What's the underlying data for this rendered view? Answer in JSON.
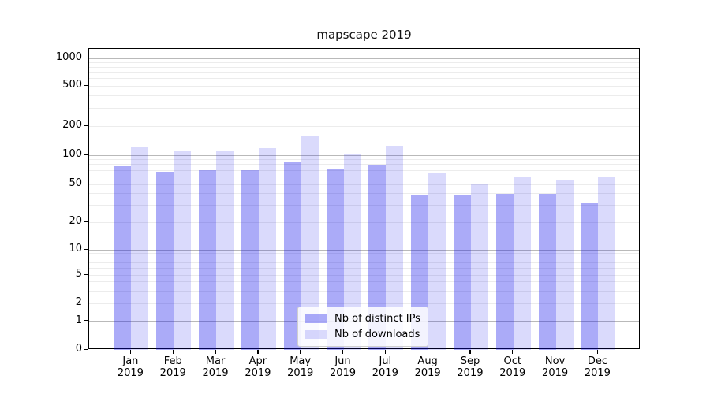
{
  "chart_data": {
    "type": "bar",
    "title": "mapscape 2019",
    "categories": [
      "Jan 2019",
      "Feb 2019",
      "Mar 2019",
      "Apr 2019",
      "May 2019",
      "Jun 2019",
      "Jul 2019",
      "Aug 2019",
      "Sep 2019",
      "Oct 2019",
      "Nov 2019",
      "Dec 2019"
    ],
    "series": [
      {
        "name": "Nb of distinct IPs",
        "color": "rgba(8,8,235,0.34)",
        "values": [
          77,
          67,
          70,
          70,
          86,
          71,
          79,
          38,
          38,
          40,
          40,
          32
        ]
      },
      {
        "name": "Nb of downloads",
        "color": "rgba(8,8,235,0.15)",
        "values": [
          124,
          112,
          112,
          119,
          158,
          102,
          126,
          66,
          51,
          59,
          55,
          60
        ]
      }
    ],
    "xlabel": "",
    "ylabel": "",
    "yscale": "symlog",
    "ylim": [
      0,
      1000
    ],
    "yticks": [
      0,
      1,
      2,
      5,
      10,
      20,
      50,
      100,
      200,
      500,
      1000
    ],
    "ytick_labels": [
      "0",
      "1",
      "2",
      "5",
      "10",
      "20",
      "50",
      "100",
      "200",
      "500",
      "1000"
    ],
    "grid": true,
    "legend_position": "lower center",
    "colors": {
      "axis": "#000000",
      "major_grid": "#b9b9b9",
      "minor_grid": "#ececec",
      "background": "#ffffff"
    }
  }
}
